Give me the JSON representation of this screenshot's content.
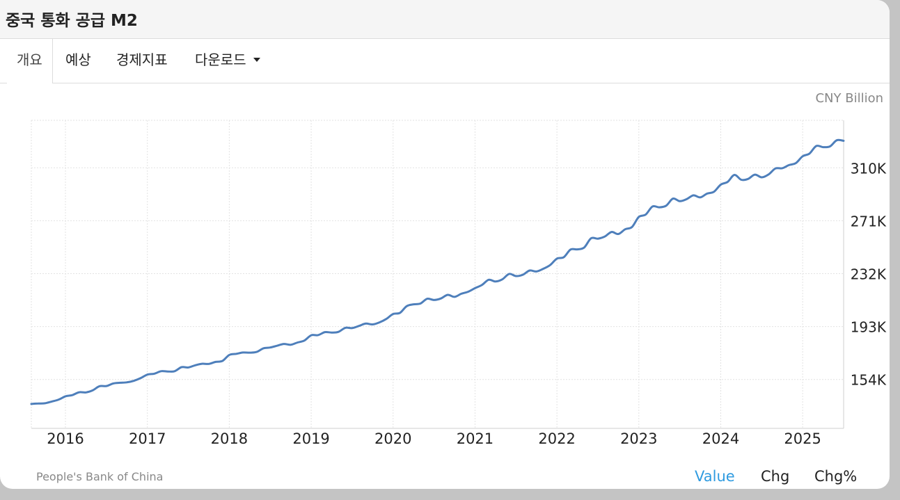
{
  "page": {
    "title": "중국 통화 공급 M2",
    "tabs": [
      {
        "label": "개요",
        "active": true
      },
      {
        "label": "예상",
        "active": false
      },
      {
        "label": "경제지표",
        "active": false
      },
      {
        "label": "다운로드",
        "active": false
      }
    ],
    "unit_label": "CNY Billion",
    "source": "People's Bank of China",
    "view_buttons": [
      "Value",
      "Chg",
      "Chg%"
    ],
    "active_view": "Value"
  },
  "colors": {
    "line": "#4e7fbb",
    "active_link": "#2f9be0",
    "grid": "#e2e2e2"
  },
  "chart_data": {
    "type": "line",
    "title": "",
    "xlabel": "",
    "ylabel": "CNY Billion",
    "grid": true,
    "y_axis_position": "right",
    "x_ticks": [
      "2016",
      "2017",
      "2018",
      "2019",
      "2020",
      "2021",
      "2022",
      "2023",
      "2024",
      "2025"
    ],
    "y_ticks": [
      {
        "value": 154000,
        "label": "154K"
      },
      {
        "value": 193000,
        "label": "193K"
      },
      {
        "value": 232000,
        "label": "232K"
      },
      {
        "value": 271000,
        "label": "271K"
      },
      {
        "value": 310000,
        "label": "310K"
      }
    ],
    "xlim": [
      "2015-08",
      "2025-07"
    ],
    "ylim": [
      118000,
      345000
    ],
    "series": [
      {
        "x": [
          "2015-08",
          "2015-09",
          "2015-10",
          "2015-11",
          "2015-12",
          "2016-01",
          "2016-02",
          "2016-03",
          "2016-04",
          "2016-05",
          "2016-06",
          "2016-07",
          "2016-08",
          "2016-09",
          "2016-10",
          "2016-11",
          "2016-12",
          "2017-01",
          "2017-02",
          "2017-03",
          "2017-04",
          "2017-05",
          "2017-06",
          "2017-07",
          "2017-08",
          "2017-09",
          "2017-10",
          "2017-11",
          "2017-12",
          "2018-01",
          "2018-02",
          "2018-03",
          "2018-04",
          "2018-05",
          "2018-06",
          "2018-07",
          "2018-08",
          "2018-09",
          "2018-10",
          "2018-11",
          "2018-12",
          "2019-01",
          "2019-02",
          "2019-03",
          "2019-04",
          "2019-05",
          "2019-06",
          "2019-07",
          "2019-08",
          "2019-09",
          "2019-10",
          "2019-11",
          "2019-12",
          "2020-01",
          "2020-02",
          "2020-03",
          "2020-04",
          "2020-05",
          "2020-06",
          "2020-07",
          "2020-08",
          "2020-09",
          "2020-10",
          "2020-11",
          "2020-12",
          "2021-01",
          "2021-02",
          "2021-03",
          "2021-04",
          "2021-05",
          "2021-06",
          "2021-07",
          "2021-08",
          "2021-09",
          "2021-10",
          "2021-11",
          "2021-12",
          "2022-01",
          "2022-02",
          "2022-03",
          "2022-04",
          "2022-05",
          "2022-06",
          "2022-07",
          "2022-08",
          "2022-09",
          "2022-10",
          "2022-11",
          "2022-12",
          "2023-01",
          "2023-02",
          "2023-03",
          "2023-04",
          "2023-05",
          "2023-06",
          "2023-07",
          "2023-08",
          "2023-09",
          "2023-10",
          "2023-11",
          "2023-12",
          "2024-01",
          "2024-02",
          "2024-03",
          "2024-04",
          "2024-05",
          "2024-06",
          "2024-07",
          "2024-08",
          "2024-09",
          "2024-10",
          "2024-11",
          "2024-12",
          "2025-01",
          "2025-02",
          "2025-03",
          "2025-04",
          "2025-05",
          "2025-06",
          "2025-07"
        ],
        "values": [
          136000,
          136300,
          136500,
          137800,
          139200,
          141600,
          142500,
          144600,
          144500,
          146100,
          149100,
          149200,
          151100,
          151600,
          151900,
          153000,
          155000,
          157600,
          158300,
          160100,
          159900,
          160100,
          163100,
          162900,
          164500,
          165600,
          165500,
          167000,
          167700,
          172100,
          172900,
          173900,
          173800,
          174300,
          177000,
          177600,
          178900,
          180200,
          179600,
          181300,
          182700,
          186600,
          186700,
          188900,
          188600,
          189100,
          192100,
          191900,
          193500,
          195200,
          194600,
          196100,
          198600,
          202300,
          203100,
          208100,
          209400,
          210000,
          213500,
          212600,
          213700,
          216400,
          214900,
          217200,
          218700,
          221300,
          223600,
          227500,
          226200,
          227800,
          231800,
          230200,
          231200,
          234300,
          233600,
          235600,
          238300,
          243100,
          244100,
          249800,
          249900,
          251300,
          258100,
          257800,
          259300,
          262700,
          261200,
          264700,
          266400,
          273800,
          275500,
          281500,
          280900,
          282100,
          287300,
          285400,
          286900,
          289700,
          288200,
          291000,
          292300,
          297600,
          299600,
          304800,
          301200,
          301800,
          305000,
          303000,
          305100,
          309500,
          309700,
          312000,
          313500,
          318500,
          320500,
          326100,
          325200,
          325800,
          330300,
          329900
        ]
      }
    ]
  }
}
